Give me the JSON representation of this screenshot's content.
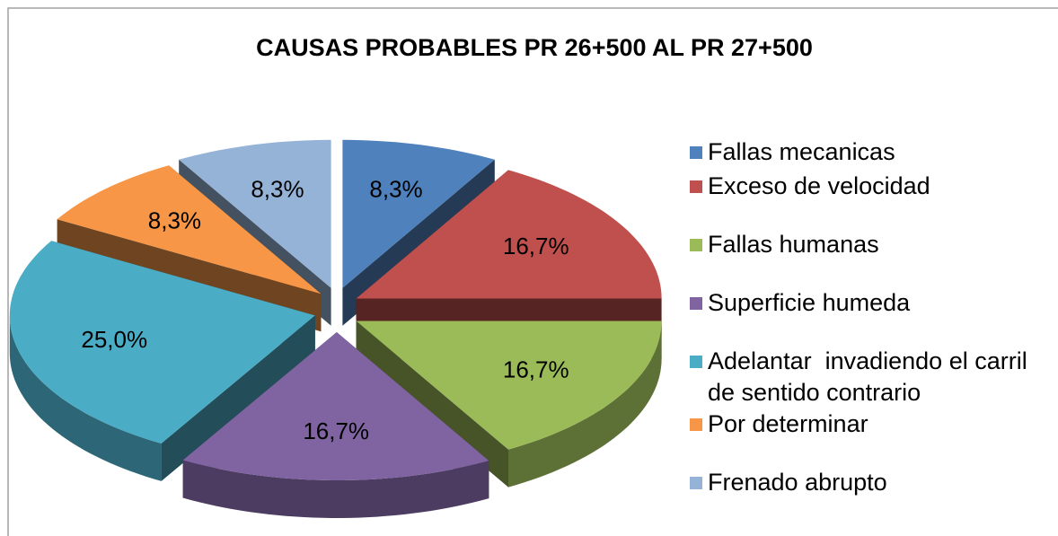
{
  "chart_data": {
    "type": "pie",
    "title": "CAUSAS PROBABLES PR 26+500 AL PR 27+500",
    "categories": [
      "Fallas mecanicas",
      "Exceso de velocidad",
      "Fallas humanas",
      "Superficie humeda",
      "Adelantar  invadiendo el carril de sentido contrario",
      "Por determinar",
      "Frenado abrupto"
    ],
    "values": [
      8.3,
      16.7,
      16.7,
      16.7,
      25.0,
      8.3,
      8.3
    ],
    "value_labels": [
      "8,3%",
      "16,7%",
      "16,7%",
      "16,7%",
      "25,0%",
      "8,3%",
      "8,3%"
    ],
    "colors": [
      "#4f81bd",
      "#c0504d",
      "#9bbb59",
      "#8064a2",
      "#4bacc6",
      "#f79646",
      "#95b3d7"
    ],
    "legend": "right"
  }
}
